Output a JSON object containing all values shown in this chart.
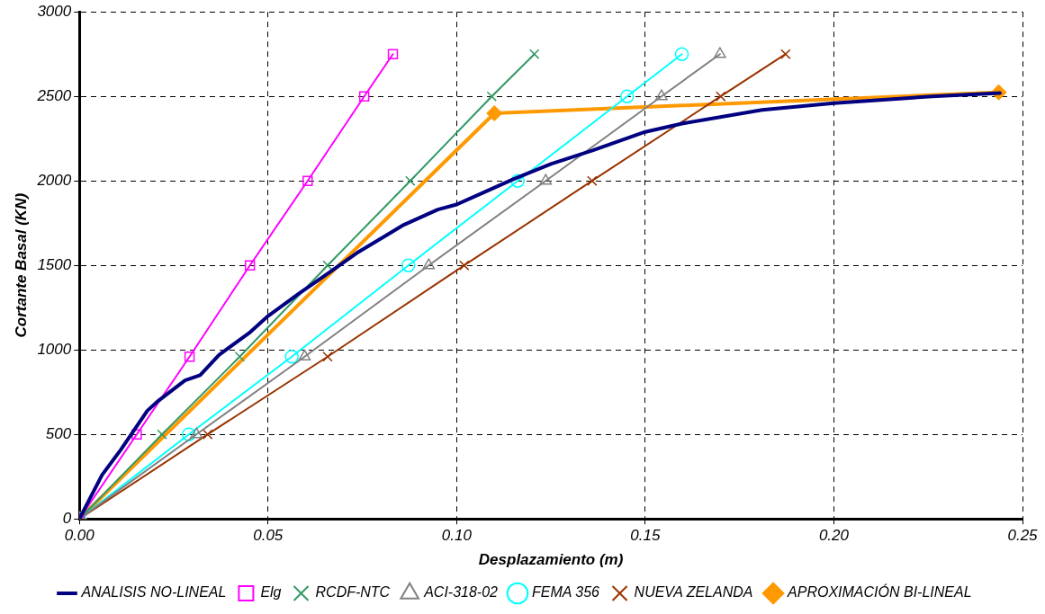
{
  "chart_data": {
    "type": "line",
    "xlabel": "Desplazamiento (m)",
    "ylabel": "Cortante Basal (KN)",
    "xlim": [
      0,
      0.25
    ],
    "xticks": [
      {
        "value": 0,
        "label": "0.00"
      },
      {
        "value": 0.05,
        "label": "0.05"
      },
      {
        "value": 0.1,
        "label": "0.10"
      },
      {
        "value": 0.15,
        "label": "0.15"
      },
      {
        "value": 0.2,
        "label": "0.20"
      },
      {
        "value": 0.25,
        "label": "0.25"
      }
    ],
    "ylim": [
      0,
      3000
    ],
    "yticks": [
      0,
      500,
      1000,
      1500,
      2000,
      2500,
      3000
    ],
    "grid": true,
    "legend": "bottom",
    "line_style": "solid",
    "series": [
      {
        "name": "ANALISIS NO-LINEAL",
        "color": "#000080",
        "marker": "none",
        "x": [
          0,
          0.006,
          0.011,
          0.018,
          0.021,
          0.028,
          0.032,
          0.037,
          0.045,
          0.05,
          0.058,
          0.067,
          0.074,
          0.086,
          0.095,
          0.1,
          0.107,
          0.115,
          0.125,
          0.136,
          0.15,
          0.16,
          0.181,
          0.2,
          0.226,
          0.244
        ],
        "values": [
          0,
          260,
          410,
          640,
          700,
          820,
          850,
          970,
          1100,
          1200,
          1330,
          1470,
          1580,
          1740,
          1830,
          1860,
          1930,
          2010,
          2100,
          2180,
          2290,
          2340,
          2420,
          2460,
          2500,
          2520
        ]
      },
      {
        "name": "Elg",
        "color": "#ff00ff",
        "marker": "square",
        "x": [
          0,
          0.0152,
          0.0292,
          0.0452,
          0.0605,
          0.0755,
          0.0831
        ],
        "values": [
          0,
          500,
          960,
          1500,
          2000,
          2500,
          2750
        ]
      },
      {
        "name": "RCDF-NTC",
        "color": "#339966",
        "marker": "cross",
        "x": [
          0,
          0.0219,
          0.0425,
          0.0658,
          0.0877,
          0.1093,
          0.1206
        ],
        "values": [
          0,
          500,
          960,
          1500,
          2000,
          2500,
          2750
        ]
      },
      {
        "name": "ACI-318-02",
        "color": "#808080",
        "marker": "triangle",
        "x": [
          0,
          0.031,
          0.0597,
          0.0926,
          0.1236,
          0.1543,
          0.1698
        ],
        "values": [
          0,
          500,
          960,
          1500,
          2000,
          2500,
          2750
        ]
      },
      {
        "name": "FEMA 356",
        "color": "#00ffff",
        "marker": "circle",
        "x": [
          0,
          0.029,
          0.0563,
          0.0872,
          0.1162,
          0.1452,
          0.1597
        ],
        "values": [
          0,
          500,
          960,
          1500,
          2000,
          2500,
          2750
        ]
      },
      {
        "name": "NUEVA ZELANDA",
        "color": "#993300",
        "marker": "cross",
        "x": [
          0,
          0.034,
          0.0658,
          0.102,
          0.1359,
          0.17,
          0.1872
        ],
        "values": [
          0,
          500,
          960,
          1500,
          2000,
          2500,
          2750
        ]
      },
      {
        "name": "APROXIMACIÓN BI-LINEAL",
        "color": "#ff9900",
        "marker": "diamond",
        "x": [
          0,
          0.11,
          0.2437
        ],
        "values": [
          0,
          2400,
          2524
        ]
      }
    ]
  }
}
